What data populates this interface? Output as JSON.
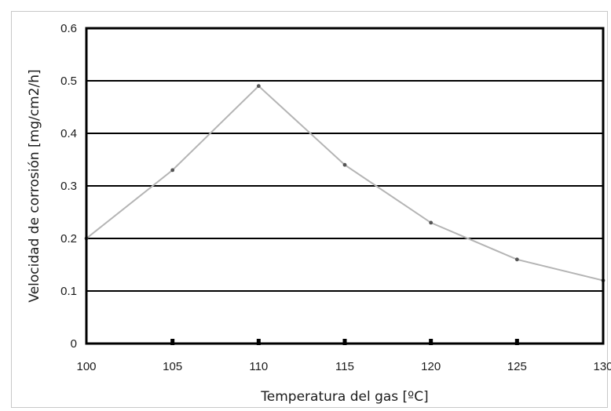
{
  "chart_data": {
    "type": "line",
    "xlabel": "Temperatura del gas [ºC]",
    "ylabel": "Velocidad de corrosión [mg/cm2/h]",
    "x": [
      100,
      105,
      110,
      115,
      120,
      125,
      130
    ],
    "series": [
      {
        "values": [
          0.2,
          0.33,
          0.49,
          0.34,
          0.23,
          0.16,
          0.12
        ]
      }
    ],
    "xlim": [
      100,
      130
    ],
    "ylim": [
      0,
      0.6
    ],
    "xticks": [
      "100",
      "105",
      "110",
      "115",
      "120",
      "125",
      "130"
    ],
    "yticks": [
      "0",
      "0.1",
      "0.2",
      "0.3",
      "0.4",
      "0.5",
      "0.6"
    ],
    "grid": "horizontal",
    "line_color": "#b4b4b4",
    "marker_color": "#555555",
    "grid_color": "#000000"
  }
}
